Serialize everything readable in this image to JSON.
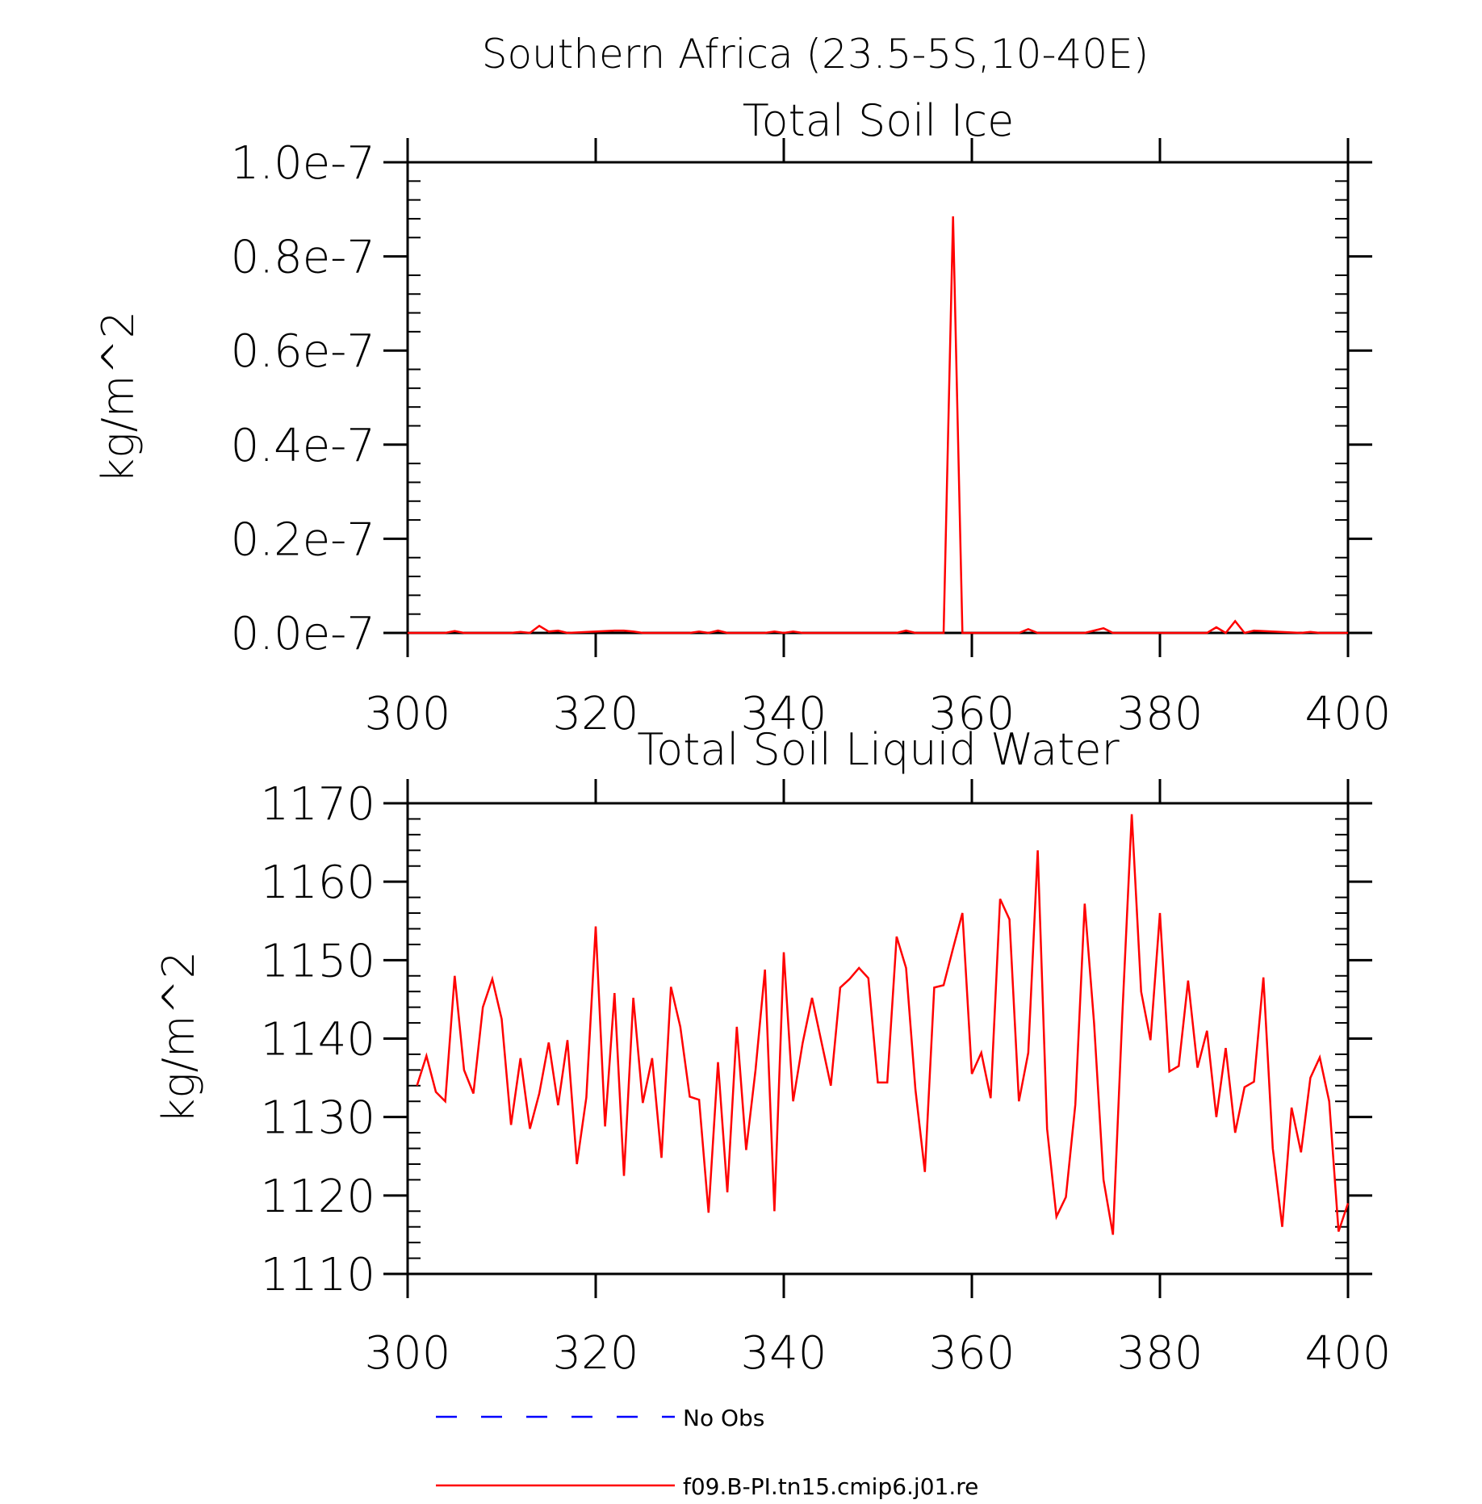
{
  "figure": {
    "title": "Southern Africa (23.5-5S,10-40E)"
  },
  "chart_data": [
    {
      "type": "line",
      "title": "Total Soil Ice",
      "xlabel": "",
      "ylabel": "kg/m^2",
      "xlim": [
        300,
        400
      ],
      "ylim": [
        0,
        1e-07
      ],
      "grid": false,
      "x_ticks": [
        300,
        320,
        340,
        360,
        380,
        400
      ],
      "x_tick_labels": [
        "300",
        "320",
        "340",
        "360",
        "380",
        "400"
      ],
      "y_ticks": [
        0,
        2e-08,
        4e-08,
        6e-08,
        8e-08,
        1e-07
      ],
      "y_tick_labels": [
        "0.0e-7",
        "0.2e-7",
        "0.4e-7",
        "0.6e-7",
        "0.8e-7",
        "1.0e-7"
      ],
      "series": [
        {
          "name": "f09.B-PI.tn15.cmip6.j01.re",
          "color": "#ff0000",
          "x": [
            300,
            304,
            305,
            306,
            311,
            312,
            313,
            314,
            315,
            316,
            317,
            322,
            323,
            324,
            325,
            330,
            331,
            332,
            333,
            334,
            338,
            339,
            340,
            341,
            342,
            343,
            352,
            353,
            354,
            357,
            358,
            359,
            365,
            366,
            367,
            372,
            373,
            374,
            375,
            385,
            386,
            387,
            388,
            389,
            390,
            395,
            396,
            397,
            400
          ],
          "y": [
            0,
            0,
            4e-10,
            0,
            0,
            2e-10,
            0,
            1.5e-09,
            3e-10,
            5e-10,
            0,
            5e-10,
            5e-10,
            3e-10,
            0,
            0,
            3e-10,
            0,
            5e-10,
            0,
            0,
            3e-10,
            0,
            3e-10,
            0,
            0,
            0,
            5e-10,
            0,
            0,
            8.85e-08,
            0,
            0,
            8e-10,
            0,
            0,
            5e-10,
            1e-09,
            0,
            0,
            1.2e-09,
            0,
            2.5e-09,
            0,
            5e-10,
            0,
            2e-10,
            0,
            0
          ]
        }
      ]
    },
    {
      "type": "line",
      "title": "Total Soil Liquid Water",
      "xlabel": "",
      "ylabel": "kg/m^2",
      "xlim": [
        300,
        400
      ],
      "ylim": [
        1110,
        1170
      ],
      "grid": false,
      "x_ticks": [
        300,
        320,
        340,
        360,
        380,
        400
      ],
      "x_tick_labels": [
        "300",
        "320",
        "340",
        "360",
        "380",
        "400"
      ],
      "y_ticks": [
        1110,
        1120,
        1130,
        1140,
        1150,
        1160,
        1170
      ],
      "y_tick_labels": [
        "1110",
        "1120",
        "1130",
        "1140",
        "1150",
        "1160",
        "1170"
      ],
      "series": [
        {
          "name": "f09.B-PI.tn15.cmip6.j01.re",
          "color": "#ff0000",
          "x": [
            301,
            302,
            303,
            304,
            305,
            306,
            307,
            308,
            309,
            310,
            311,
            312,
            313,
            314,
            315,
            316,
            317,
            318,
            319,
            320,
            321,
            322,
            323,
            324,
            325,
            326,
            327,
            328,
            329,
            330,
            331,
            332,
            333,
            334,
            335,
            336,
            337,
            338,
            339,
            340,
            341,
            342,
            343,
            344,
            345,
            346,
            347,
            348,
            349,
            350,
            351,
            352,
            353,
            354,
            355,
            356,
            357,
            358,
            359,
            360,
            361,
            362,
            363,
            364,
            365,
            366,
            367,
            368,
            369,
            370,
            371,
            372,
            373,
            374,
            375,
            376,
            377,
            378,
            379,
            380,
            381,
            382,
            383,
            384,
            385,
            386,
            387,
            388,
            389,
            390,
            391,
            392,
            393,
            394,
            395,
            396,
            397,
            398,
            399,
            400
          ],
          "y": [
            1134.0,
            1137.8,
            1133.2,
            1132.0,
            1148.0,
            1136.0,
            1133.0,
            1144.0,
            1147.6,
            1142.5,
            1129.0,
            1137.5,
            1128.5,
            1133.0,
            1139.5,
            1131.5,
            1139.8,
            1124.0,
            1132.5,
            1154.3,
            1128.8,
            1145.8,
            1122.5,
            1145.2,
            1131.8,
            1137.5,
            1124.8,
            1146.6,
            1141.5,
            1132.6,
            1132.2,
            1117.8,
            1137.0,
            1120.4,
            1141.5,
            1125.8,
            1136.0,
            1148.8,
            1118.0,
            1151.0,
            1132.0,
            1139.4,
            1145.2,
            1139.6,
            1134.0,
            1146.5,
            1147.6,
            1149.0,
            1147.7,
            1134.4,
            1134.4,
            1153.0,
            1149.0,
            1133.5,
            1123.0,
            1146.5,
            1146.8,
            1151.5,
            1156.0,
            1135.5,
            1138.2,
            1132.4,
            1157.8,
            1155.2,
            1132.0,
            1138.2,
            1164.0,
            1128.5,
            1117.3,
            1119.8,
            1131.6,
            1157.2,
            1142.0,
            1122.0,
            1115.0,
            1143.0,
            1168.6,
            1146.0,
            1139.8,
            1156.0,
            1135.8,
            1136.5,
            1147.4,
            1136.3,
            1141.0,
            1130.0,
            1138.8,
            1128.0,
            1133.8,
            1134.5,
            1147.8,
            1126.0,
            1116.0,
            1131.2,
            1125.5,
            1135.0,
            1137.6,
            1132.0,
            1115.4,
            1119.0
          ]
        }
      ]
    }
  ],
  "legend": {
    "placement": "bottom-center",
    "items": [
      {
        "label": "No Obs",
        "color": "#0000ff",
        "style": "dashed"
      },
      {
        "label": "f09.B-PI.tn15.cmip6.j01.re",
        "color": "#ff0000",
        "style": "solid"
      }
    ]
  }
}
